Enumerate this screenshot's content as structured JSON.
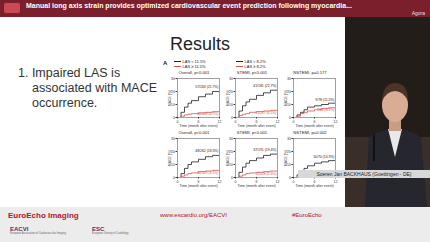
{
  "banner": {
    "title": "Manual long axis strain provides optimized cardiovascular event prediction following myocardia...",
    "room": "Agora"
  },
  "slide": {
    "title": "Results",
    "points": [
      "1. Impaired LAS is associated with MACE occurrence."
    ],
    "panel_label": "A"
  },
  "chart_data": [
    {
      "type": "line",
      "title": "Overall, p<0.001",
      "line_style": "step",
      "x": [
        0,
        1,
        2,
        3,
        4,
        6,
        8,
        10,
        12
      ],
      "xlim": [
        0,
        12
      ],
      "xticks": [
        0,
        6,
        12
      ],
      "ylim": [
        0,
        30
      ],
      "yticks": [
        0,
        10,
        20,
        30
      ],
      "x_label": "Time (month after event)",
      "y_label": "MACE (%)",
      "series": [
        {
          "name": "LAS < 11.5%",
          "color": "#222222",
          "values": [
            0,
            4,
            8,
            11,
            13,
            16,
            18,
            20,
            21.7
          ]
        },
        {
          "name": "LAS ≥ 11.5%",
          "color": "#d9534f",
          "values": [
            0,
            1,
            2,
            2.5,
            3,
            3.5,
            4,
            4.5,
            4.7
          ]
        }
      ],
      "annotations": [
        "57/263 (21.7%)",
        "16/338 (4.7%)"
      ]
    },
    {
      "type": "line",
      "title": "STEMI, p<0.001",
      "line_style": "step",
      "x": [
        0,
        1,
        2,
        3,
        4,
        6,
        8,
        10,
        12
      ],
      "xlim": [
        0,
        12
      ],
      "xticks": [
        0,
        6,
        12
      ],
      "ylim": [
        0,
        30
      ],
      "yticks": [
        0,
        10,
        20,
        30
      ],
      "x_label": "Time (month after event)",
      "y_label": "MACE (%)",
      "series": [
        {
          "name": "LAS < 11.5%",
          "color": "#222222",
          "values": [
            0,
            5,
            9,
            12,
            14,
            17,
            19,
            21,
            22.7
          ]
        },
        {
          "name": "LAS ≥ 11.5%",
          "color": "#d9534f",
          "values": [
            0,
            1.5,
            2.5,
            3,
            4,
            4.5,
            5,
            5.5,
            6.1
          ]
        }
      ],
      "annotations": [
        "41/181 (22.7%)",
        "15/247 (6.1%)"
      ]
    },
    {
      "type": "line",
      "title": "NSTEMI, p=0.177",
      "line_style": "step",
      "x": [
        0,
        1,
        2,
        3,
        4,
        6,
        8,
        10,
        12
      ],
      "xlim": [
        0,
        12
      ],
      "xticks": [
        0,
        6,
        12
      ],
      "ylim": [
        0,
        30
      ],
      "yticks": [
        0,
        10,
        20,
        30
      ],
      "x_label": "Time (month after event)",
      "y_label": "MACE (%)",
      "series": [
        {
          "name": "LAS < 11.5%",
          "color": "#222222",
          "values": [
            0,
            2,
            4,
            6,
            8,
            9,
            10,
            11,
            11.5
          ]
        },
        {
          "name": "LAS ≥ 11.5%",
          "color": "#d9534f",
          "values": [
            0,
            1,
            3,
            4,
            5,
            6,
            7,
            7.5,
            8.1
          ]
        }
      ],
      "annotations": [
        "9/78 (11.5%)",
        "7/86 (8.1%)"
      ]
    },
    {
      "type": "line",
      "title": "Overall, p<0.001",
      "line_style": "step",
      "x": [
        0,
        1,
        2,
        3,
        4,
        6,
        8,
        10,
        12
      ],
      "xlim": [
        0,
        12
      ],
      "xticks": [
        0,
        6,
        12
      ],
      "ylim": [
        0,
        30
      ],
      "yticks": [
        0,
        10,
        20,
        30
      ],
      "x_label": "Time (month after event)",
      "y_label": "MACE (%)",
      "series": [
        {
          "name": "LAS < 8.2%",
          "color": "#222222",
          "values": [
            0,
            3,
            7,
            10,
            12,
            14,
            16,
            17,
            18.3
          ]
        },
        {
          "name": "LAS ≥ 8.2%",
          "color": "#d9534f",
          "values": [
            0,
            1,
            2,
            3,
            3.5,
            4.5,
            5,
            5.5,
            6.1
          ]
        }
      ],
      "annotations": [
        "48/262 (18.3%)",
        "20/329 (6.1%)"
      ]
    },
    {
      "type": "line",
      "title": "STEMI, p<0.001",
      "line_style": "step",
      "x": [
        0,
        1,
        2,
        3,
        4,
        6,
        8,
        10,
        12
      ],
      "xlim": [
        0,
        12
      ],
      "xticks": [
        0,
        6,
        12
      ],
      "ylim": [
        0,
        30
      ],
      "yticks": [
        0,
        10,
        20,
        30
      ],
      "x_label": "Time (month after event)",
      "y_label": "MACE (%)",
      "series": [
        {
          "name": "LAS < 8.2%",
          "color": "#222222",
          "values": [
            0,
            4,
            8,
            11,
            13,
            15,
            17,
            18,
            19.4
          ]
        },
        {
          "name": "LAS ≥ 8.2%",
          "color": "#d9534f",
          "values": [
            0,
            1,
            2,
            3,
            3.5,
            4,
            4.5,
            5,
            5.3
          ]
        }
      ],
      "annotations": [
        "37/191 (19.4%)",
        "12/228 (5.3%)"
      ]
    },
    {
      "type": "line",
      "title": "NSTEMI, p=0.002",
      "line_style": "step",
      "x": [
        0,
        1,
        2,
        3,
        4,
        6,
        8,
        10,
        12
      ],
      "xlim": [
        0,
        12
      ],
      "xticks": [
        0,
        6,
        12
      ],
      "ylim": [
        0,
        30
      ],
      "yticks": [
        0,
        10,
        20,
        30
      ],
      "x_label": "Time (month after event)",
      "y_label": "MACE (%)",
      "series": [
        {
          "name": "LAS < 8.2%",
          "color": "#222222",
          "values": [
            0,
            2,
            5,
            7,
            9,
            11,
            12,
            13,
            14.3
          ]
        },
        {
          "name": "LAS ≥ 8.2%",
          "color": "#d9534f",
          "values": [
            0,
            0,
            1,
            1,
            2,
            2,
            2.5,
            3,
            3.2
          ]
        }
      ],
      "annotations": [
        "10/70 (14.3%)",
        "3/94 (3.2%)"
      ]
    }
  ],
  "speaker": "Soeren Jan BACKHAUS (Goettingen - DE)",
  "footer": {
    "brand": "EuroEcho Imaging",
    "url": "www.escardio.org/EACVI",
    "hashtag": "#EuroEcho",
    "logos": [
      {
        "name": "EACVI",
        "subtitle": "European Association of Cardiovascular Imaging"
      },
      {
        "name": "ESC",
        "subtitle": "European Society of Cardiology"
      }
    ]
  }
}
